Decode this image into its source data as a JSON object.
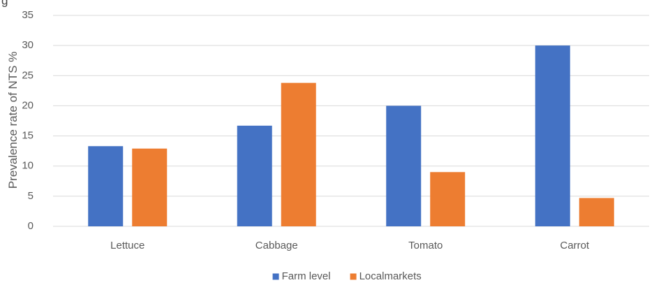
{
  "chart_data": {
    "type": "bar",
    "top_text": "g",
    "categories": [
      "Lettuce",
      "Cabbage",
      "Tomato",
      "Carrot"
    ],
    "series": [
      {
        "name": "Farm level",
        "color": "#4472C4",
        "values": [
          13.3,
          16.7,
          20.0,
          30.0
        ]
      },
      {
        "name": "Localmarkets",
        "color": "#ED7D31",
        "values": [
          12.9,
          23.8,
          9.0,
          4.7
        ]
      }
    ],
    "xlabel": "",
    "ylabel": "Prevalence rate of NTS %",
    "ylim": [
      0,
      35
    ],
    "yticks": [
      "0",
      "5",
      "10",
      "15",
      "20",
      "25",
      "30",
      "35"
    ],
    "grid": true,
    "legend_position": "bottom",
    "grid_color": "#D9D9D9",
    "text_color": "#595959"
  }
}
